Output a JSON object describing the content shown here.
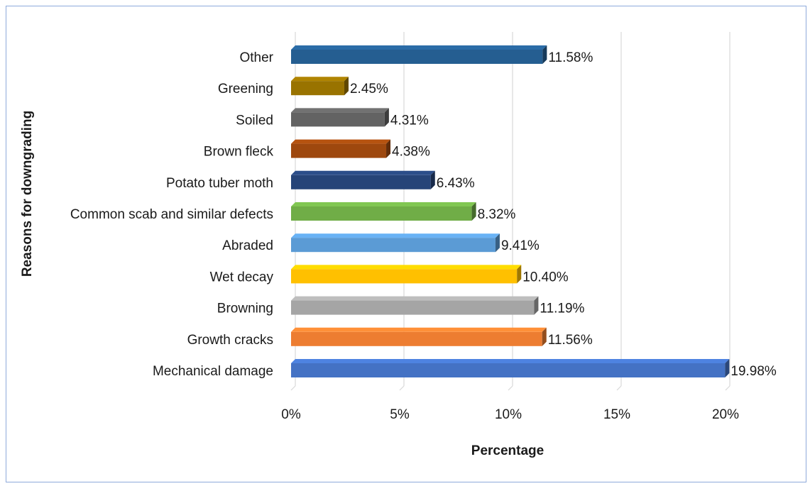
{
  "chart_data": {
    "type": "bar",
    "orientation": "horizontal",
    "style": "3d",
    "categories": [
      "Mechanical damage",
      "Growth cracks",
      "Browning",
      "Wet decay",
      "Abraded",
      "Common scab and similar defects",
      "Potato tuber moth",
      "Brown fleck",
      "Soiled",
      "Greening",
      "Other"
    ],
    "values": [
      19.98,
      11.56,
      11.19,
      10.4,
      9.41,
      8.32,
      6.43,
      4.38,
      4.31,
      2.45,
      11.58
    ],
    "data_labels": [
      "19.98%",
      "11.56%",
      "11.19%",
      "10.40%",
      "9.41%",
      "8.32%",
      "6.43%",
      "4.38%",
      "4.31%",
      "2.45%",
      "11.58%"
    ],
    "colors": [
      "#4472c4",
      "#ed7d31",
      "#a5a5a5",
      "#ffc000",
      "#5b9bd5",
      "#70ad47",
      "#264478",
      "#9e480e",
      "#636363",
      "#997300",
      "#255e91"
    ],
    "xlabel": "Percentage",
    "ylabel": "Reasons for downgrading",
    "xlim": [
      0,
      20
    ],
    "xticks": [
      0,
      5,
      10,
      15,
      20
    ],
    "xtick_labels": [
      "0%",
      "5%",
      "10%",
      "15%",
      "20%"
    ],
    "grid": true,
    "legend": "none"
  }
}
